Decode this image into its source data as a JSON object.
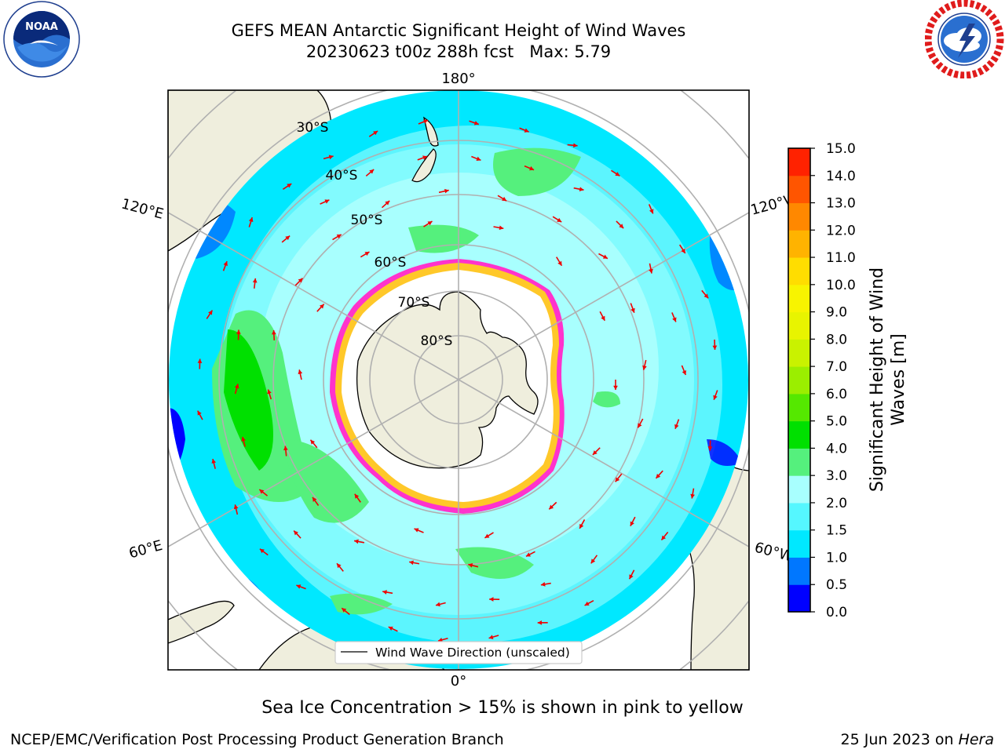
{
  "header": {
    "title_line1": "GEFS MEAN Antarctic Significant Height of Wind Waves",
    "title_line2": "20230623 t00z 288h fcst   Max: 5.79"
  },
  "logos": {
    "left": {
      "name": "noaa-logo",
      "text": "NOAA",
      "ring_text": "NATIONAL OCEANIC AND ATMOSPHERIC ADMINISTRATION · U.S. DEPARTMENT OF COMMERCE"
    },
    "right": {
      "name": "nws-logo",
      "ring_text": "NATIONAL WEATHER SERVICE"
    }
  },
  "map": {
    "projection": "south-polar-stereographic",
    "longitude_labels": {
      "top": "180°",
      "bottom": "0°",
      "upper_left": "120°E",
      "lower_left": "60°E",
      "upper_right": "120°W",
      "lower_right": "60°W"
    },
    "latitude_labels": [
      "30°S",
      "40°S",
      "50°S",
      "60°S",
      "70°S",
      "80°S"
    ],
    "legend_text": "Wind Wave Direction (unscaled)",
    "colors": {
      "land": "#efeedd",
      "ice_free_pole": "#ffffff",
      "ice_edge": [
        "#ff33cc",
        "#ffee00"
      ],
      "arrow": "#ee0000",
      "grid": "#b0b0b0"
    }
  },
  "colorbar": {
    "label": "Significant Height of Wind Waves [m]",
    "label_line1": "Significant Height of Wind",
    "label_line2": "Waves [m]",
    "ticks": [
      "0.0",
      "0.5",
      "1.0",
      "1.5",
      "2.0",
      "3.0",
      "4.0",
      "5.0",
      "6.0",
      "7.0",
      "8.0",
      "9.0",
      "10.0",
      "11.0",
      "12.0",
      "13.0",
      "14.0",
      "15.0"
    ],
    "colors": [
      "#0000ff",
      "#0077ff",
      "#00e8ff",
      "#55f7ff",
      "#a8fffe",
      "#55f07d",
      "#00e000",
      "#55e800",
      "#9bee00",
      "#c9f200",
      "#e8f400",
      "#f8f400",
      "#ffdd00",
      "#ffb300",
      "#ff8800",
      "#ff5500",
      "#ff2200"
    ]
  },
  "note": "Sea Ice Concentration > 15% is shown in pink to yellow",
  "footer": {
    "left": "NCEP/EMC/Verification Post Processing Product Generation Branch",
    "right_date": "25 Jun 2023 on ",
    "right_host": "Hera"
  }
}
